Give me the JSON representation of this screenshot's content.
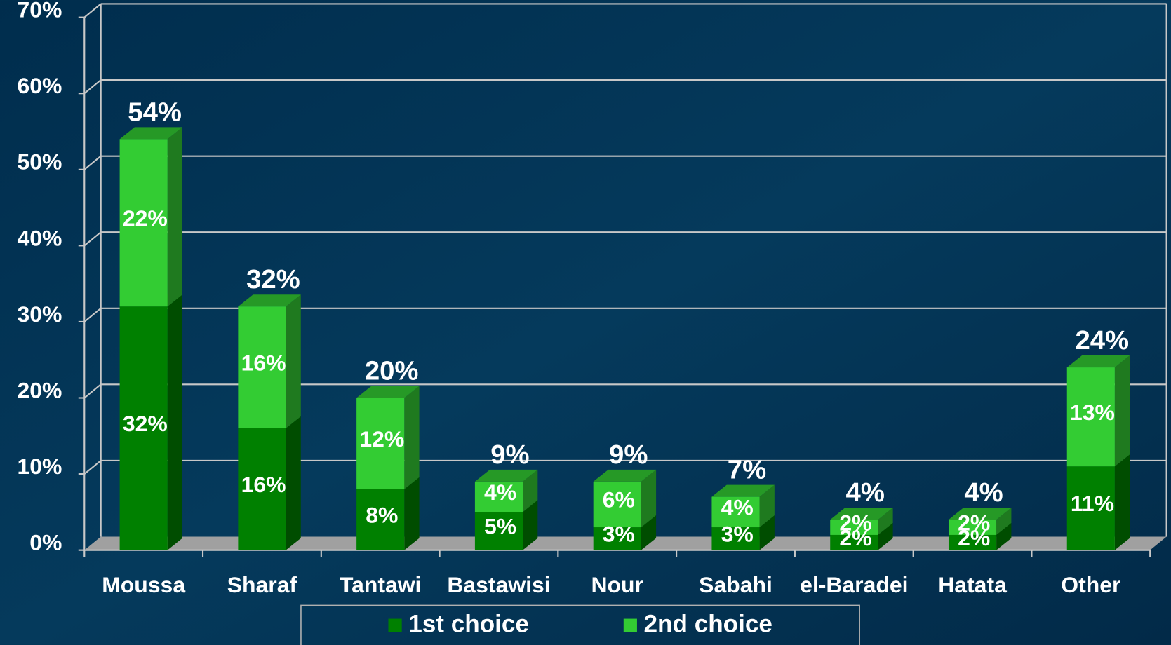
{
  "chart_data": {
    "type": "bar",
    "stacked": true,
    "categories": [
      "Moussa",
      "Sharaf",
      "Tantawi",
      "Bastawisi",
      "Nour",
      "Sabahi",
      "el-Baradei",
      "Hatata",
      "Other"
    ],
    "series": [
      {
        "name": "1st choice",
        "color": "#008000",
        "values": [
          32,
          16,
          8,
          5,
          3,
          3,
          2,
          2,
          11
        ],
        "value_labels": [
          "32%",
          "16%",
          "8%",
          "5%",
          "3%",
          "3%",
          "2%",
          "2%",
          "11%"
        ]
      },
      {
        "name": "2nd choice",
        "color": "#33cc33",
        "values": [
          22,
          16,
          12,
          4,
          6,
          4,
          2,
          2,
          13
        ],
        "value_labels": [
          "22%",
          "16%",
          "12%",
          "4%",
          "6%",
          "4%",
          "2%",
          "2%",
          "13%"
        ]
      }
    ],
    "totals": [
      54,
      32,
      20,
      9,
      9,
      7,
      4,
      4,
      24
    ],
    "total_labels": [
      "54%",
      "32%",
      "20%",
      "9%",
      "9%",
      "7%",
      "4%",
      "4%",
      "24%"
    ],
    "ylim": [
      0,
      70
    ],
    "yticks": [
      {
        "value": 0,
        "label": "0%"
      },
      {
        "value": 10,
        "label": "10%"
      },
      {
        "value": 20,
        "label": "20%"
      },
      {
        "value": 30,
        "label": "30%"
      },
      {
        "value": 40,
        "label": "40%"
      },
      {
        "value": 50,
        "label": "50%"
      },
      {
        "value": 60,
        "label": "60%"
      },
      {
        "value": 70,
        "label": "70%"
      }
    ],
    "grid": true,
    "legend": "bottom"
  }
}
